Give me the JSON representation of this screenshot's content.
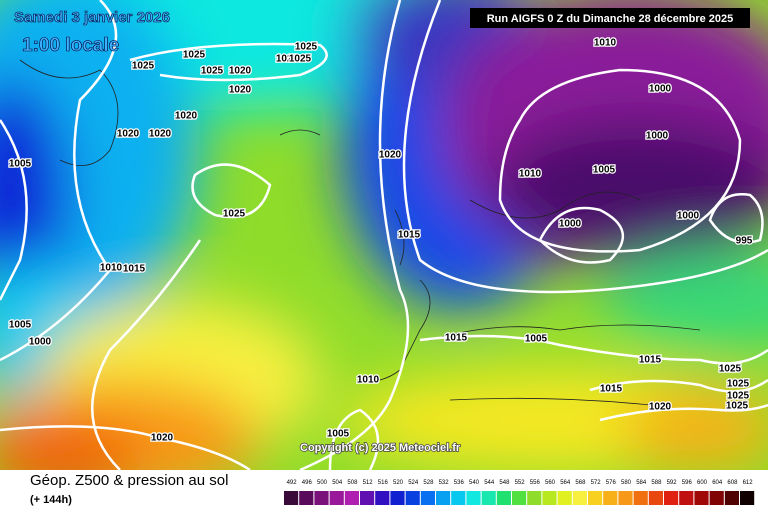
{
  "header": {
    "date": "Samedi 3 janvier 2026",
    "time": "1:00 locale",
    "run": "Run AIGFS 0 Z du Dimanche 28 décembre 2025"
  },
  "copyright": "Copyright (c) 2025 Meteociel.fr",
  "footer": {
    "title": "Géop. Z500 & pression au sol",
    "lead": "(+ 144h)"
  },
  "scale": {
    "labels": [
      "492",
      "496",
      "500",
      "504",
      "508",
      "512",
      "516",
      "520",
      "524",
      "528",
      "532",
      "536",
      "540",
      "544",
      "548",
      "552",
      "556",
      "560",
      "564",
      "568",
      "572",
      "576",
      "580",
      "584",
      "588",
      "592",
      "596",
      "600",
      "604",
      "608",
      "612"
    ]
  },
  "isobar_labels": [
    "1025",
    "1025",
    "1025",
    "1025",
    "1020",
    "1020",
    "1025",
    "1020",
    "1020",
    "1020",
    "1020",
    "1005",
    "1025",
    "1020",
    "1015",
    "1010",
    "1015",
    "1005",
    "1000",
    "1010",
    "1000",
    "1000",
    "1010",
    "1005",
    "1000",
    "1000",
    "995",
    "1015",
    "1005",
    "1015",
    "1015",
    "1025",
    "1025",
    "1025",
    "1025",
    "1020",
    "1010",
    "1020",
    "1005"
  ]
}
